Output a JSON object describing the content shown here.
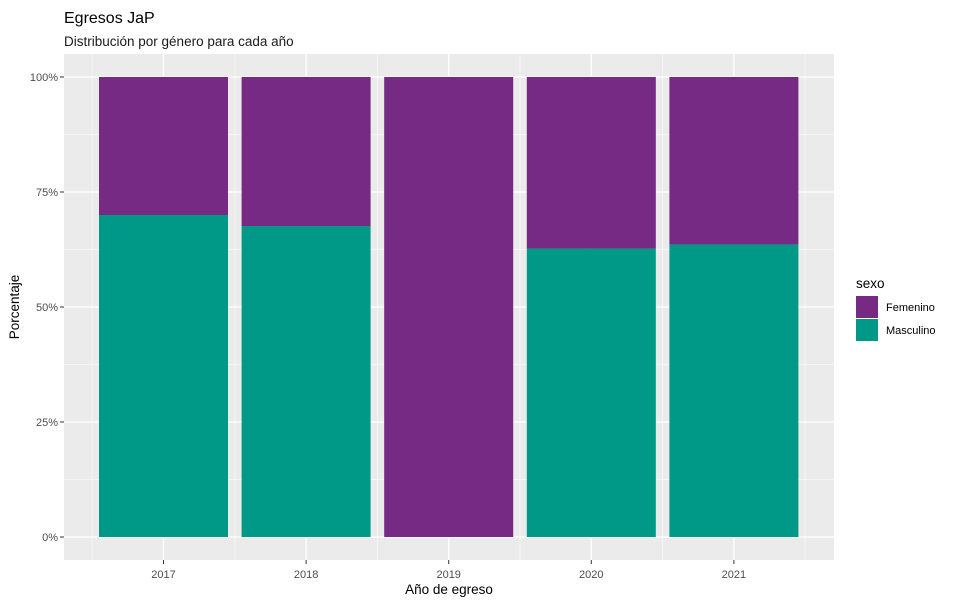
{
  "chart_data": {
    "type": "bar",
    "stacked": "percent",
    "title": "Egresos JaP",
    "subtitle": "Distribución por género para cada año",
    "xlabel": "Año de egreso",
    "ylabel": "Porcentaje",
    "categories": [
      "2017",
      "2018",
      "2019",
      "2020",
      "2021"
    ],
    "series": [
      {
        "name": "Masculino",
        "color": "#009988",
        "values": [
          70,
          67.6,
          0,
          62.7,
          63.6
        ]
      },
      {
        "name": "Femenino",
        "color": "#762A83",
        "values": [
          30,
          32.4,
          100,
          37.3,
          36.4
        ]
      }
    ],
    "ylim": [
      0,
      100
    ],
    "yticks": [
      "0%",
      "25%",
      "50%",
      "75%",
      "100%"
    ],
    "grid": true,
    "legend": {
      "title": "sexo",
      "position": "right",
      "entries": [
        {
          "name": "Femenino",
          "color": "#762A83"
        },
        {
          "name": "Masculino",
          "color": "#009988"
        }
      ]
    },
    "panel_background": "#EBEBEB"
  }
}
